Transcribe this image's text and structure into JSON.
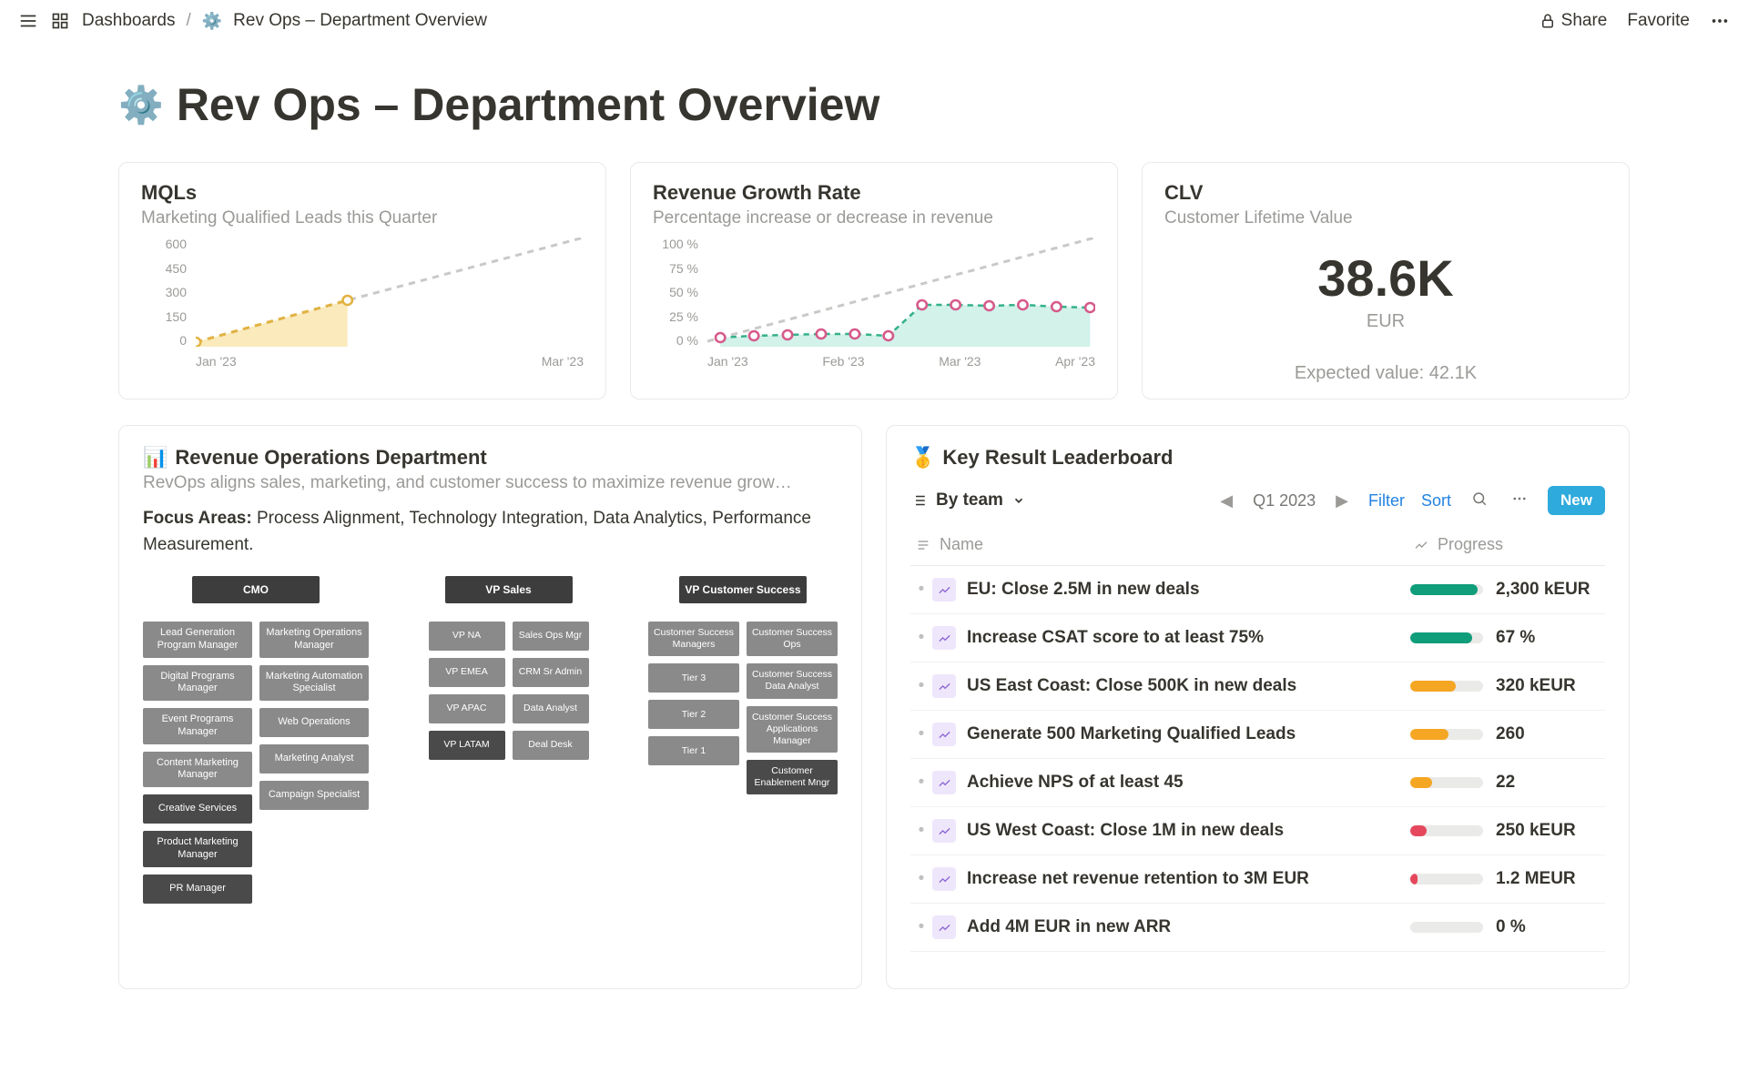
{
  "topbar": {
    "dashboards_label": "Dashboards",
    "page_title": "Rev Ops – Department Overview",
    "share_label": "Share",
    "favorite_label": "Favorite"
  },
  "page": {
    "title": "Rev Ops – Department Overview"
  },
  "kpi": {
    "mqls": {
      "title": "MQLs",
      "subtitle": "Marketing Qualified Leads this Quarter",
      "y_ticks": [
        "600",
        "450",
        "300",
        "150",
        "0"
      ],
      "x_ticks": [
        "Jan '23",
        "Mar '23"
      ],
      "actual_points": [
        [
          0,
          115
        ],
        [
          90,
          69
        ]
      ],
      "target_points": [
        [
          0,
          115
        ],
        [
          90,
          69
        ],
        [
          230,
          0
        ]
      ],
      "area_fill": "#f3d06b",
      "actual_color": "#e3b341",
      "target_color": "#c9c9c7",
      "marker_stroke": "#e3b341",
      "marker_fill": "#ffffff"
    },
    "growth": {
      "title": "Revenue Growth Rate",
      "subtitle": "Percentage increase or decrease in revenue",
      "y_ticks": [
        "100 %",
        "75 %",
        "50 %",
        "25 %",
        "0 %"
      ],
      "x_ticks": [
        "Jan '23",
        "Feb '23",
        "Mar '23",
        "Apr '23"
      ],
      "actual_points": [
        [
          10,
          110
        ],
        [
          36,
          108
        ],
        [
          62,
          107
        ],
        [
          88,
          106
        ],
        [
          114,
          106
        ],
        [
          140,
          108
        ],
        [
          166,
          74
        ],
        [
          192,
          74
        ],
        [
          218,
          75
        ],
        [
          244,
          74
        ],
        [
          270,
          76
        ],
        [
          296,
          77
        ]
      ],
      "target_points": [
        [
          0,
          114
        ],
        [
          300,
          0
        ]
      ],
      "area_fill": "#7fd9c4",
      "actual_color": "#35b18a",
      "marker_stroke": "#d65a8a",
      "marker_fill": "#ffffff",
      "target_color": "#c9c9c7"
    },
    "clv": {
      "title": "CLV",
      "subtitle": "Customer Lifetime Value",
      "value": "38.6K",
      "unit": "EUR",
      "expected": "Expected value: 42.1K"
    }
  },
  "dept": {
    "title": "Revenue Operations Department",
    "subtitle": "RevOps aligns sales, marketing, and customer success to maximize revenue grow…",
    "focus_label": "Focus Areas:",
    "focus_text": " Process Alignment, Technology Integration, Data Analytics, Performance Measurement.",
    "org": {
      "cmo": {
        "root": "CMO",
        "left": [
          "Lead Generation Program Manager",
          "Digital Programs Manager",
          "Event Programs Manager",
          "Content Marketing Manager",
          "Creative Services",
          "Product Marketing Manager",
          "PR Manager"
        ],
        "right": [
          "Marketing Operations Manager",
          "Marketing Automation Specialist",
          "Web Operations",
          "Marketing Analyst",
          "Campaign Specialist"
        ]
      },
      "vpsales": {
        "root": "VP Sales",
        "left": [
          "VP NA",
          "VP EMEA",
          "VP APAC",
          "VP LATAM"
        ],
        "right": [
          "Sales Ops Mgr",
          "CRM Sr Admin",
          "Data Analyst",
          "Deal Desk"
        ]
      },
      "vpcs": {
        "root": "VP Customer Success",
        "left": [
          "Customer Success Managers",
          "Tier 3",
          "Tier 2",
          "Tier 1"
        ],
        "right": [
          "Customer Success Ops",
          "Customer Success Data Analyst",
          "Customer Success Applications Manager",
          "Customer Enablement Mngr"
        ]
      }
    }
  },
  "leaderboard": {
    "title": "Key Result Leaderboard",
    "group_by": "By team",
    "period": "Q1 2023",
    "filter_label": "Filter",
    "sort_label": "Sort",
    "new_label": "New",
    "columns": {
      "name": "Name",
      "progress": "Progress"
    },
    "colors": {
      "green": "#0f9d7a",
      "yellow": "#f5a623",
      "red": "#e5485d",
      "grey": "#d4d4d2"
    },
    "rows": [
      {
        "name": "EU: Close 2.5M in new deals",
        "value": "2,300 kEUR",
        "pct": 92,
        "color": "green"
      },
      {
        "name": "Increase CSAT score to at least 75%",
        "value": "67 %",
        "pct": 85,
        "color": "green"
      },
      {
        "name": "US East Coast: Close 500K in new deals",
        "value": "320 kEUR",
        "pct": 62,
        "color": "yellow"
      },
      {
        "name": "Generate 500 Marketing Qualified Leads",
        "value": "260",
        "pct": 52,
        "color": "yellow"
      },
      {
        "name": "Achieve NPS of at least 45",
        "value": "22",
        "pct": 30,
        "color": "yellow"
      },
      {
        "name": "US West Coast: Close 1M in new deals",
        "value": "250 kEUR",
        "pct": 22,
        "color": "red"
      },
      {
        "name": "Increase net revenue retention to 3M EUR",
        "value": "1.2 MEUR",
        "pct": 10,
        "color": "red"
      },
      {
        "name": "Add 4M EUR in new ARR",
        "value": "0 %",
        "pct": 0,
        "color": "grey"
      }
    ]
  }
}
